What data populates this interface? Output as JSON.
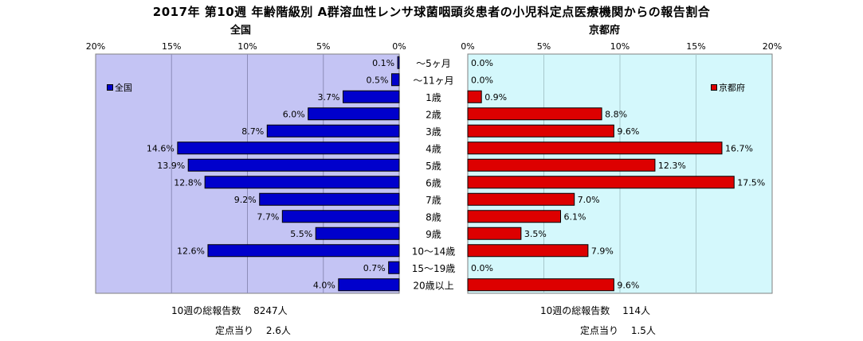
{
  "title": "2017年 第10週 年齢階級別 A群溶血性レンサ球菌咽頭炎患者の小児科定点医療機関からの報告割合",
  "colors": {
    "national": "#0000cc",
    "kyoto": "#dd0000",
    "plot_bg_left": "#c4c4f4",
    "plot_bg_right": "#d4f8fc"
  },
  "chart_data": [
    {
      "type": "bar",
      "orientation": "horizontal",
      "title": "全国",
      "legend": "全国",
      "legend_position": "top-left",
      "xlim": [
        0,
        20
      ],
      "x_reversed": true,
      "tick_labels": [
        "20%",
        "15%",
        "10%",
        "5%",
        "0%"
      ],
      "tick_values": [
        20,
        15,
        10,
        5,
        0
      ],
      "categories": [
        "～5ヶ月",
        "～11ヶ月",
        "1歳",
        "2歳",
        "3歳",
        "4歳",
        "5歳",
        "6歳",
        "7歳",
        "8歳",
        "9歳",
        "10～14歳",
        "15～19歳",
        "20歳以上"
      ],
      "values": [
        0.1,
        0.5,
        3.7,
        6.0,
        8.7,
        14.6,
        13.9,
        12.8,
        9.2,
        7.7,
        5.5,
        12.6,
        0.7,
        4.0
      ],
      "data_labels": [
        "0.1%",
        "0.5%",
        "3.7%",
        "6.0%",
        "8.7%",
        "14.6%",
        "13.9%",
        "12.8%",
        "9.2%",
        "7.7%",
        "5.5%",
        "12.6%",
        "0.7%",
        "4.0%"
      ],
      "grid": true
    },
    {
      "type": "bar",
      "orientation": "horizontal",
      "title": "京都府",
      "legend": "京都府",
      "legend_position": "top-right",
      "xlim": [
        0,
        20
      ],
      "tick_labels": [
        "0%",
        "5%",
        "10%",
        "15%",
        "20%"
      ],
      "tick_values": [
        0,
        5,
        10,
        15,
        20
      ],
      "categories": [
        "～5ヶ月",
        "～11ヶ月",
        "1歳",
        "2歳",
        "3歳",
        "4歳",
        "5歳",
        "6歳",
        "7歳",
        "8歳",
        "9歳",
        "10～14歳",
        "15～19歳",
        "20歳以上"
      ],
      "values": [
        0.0,
        0.0,
        0.9,
        8.8,
        9.6,
        16.7,
        12.3,
        17.5,
        7.0,
        6.1,
        3.5,
        7.9,
        0.0,
        9.6
      ],
      "data_labels": [
        "0.0%",
        "0.0%",
        "0.9%",
        "8.8%",
        "9.6%",
        "16.7%",
        "12.3%",
        "17.5%",
        "7.0%",
        "6.1%",
        "3.5%",
        "7.9%",
        "0.0%",
        "9.6%"
      ],
      "grid": true
    }
  ],
  "footer": {
    "national_total": "10週の総報告数　 8247人",
    "national_per": "定点当り　 2.6人",
    "kyoto_total": "10週の総報告数　 114人",
    "kyoto_per": "定点当り　 1.5人"
  }
}
